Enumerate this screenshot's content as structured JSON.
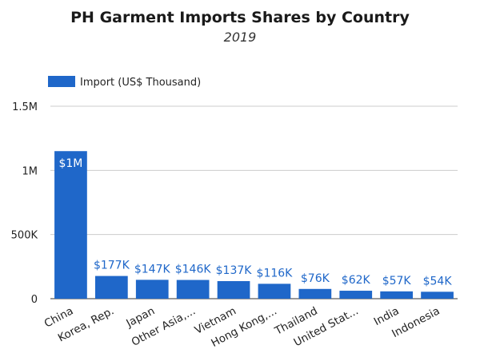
{
  "chart_data": {
    "type": "bar",
    "title": "PH Garment Imports Shares by Country",
    "subtitle": "2019",
    "legend": {
      "position": "top-left",
      "entries": [
        {
          "name": "Import (US$ Thousand)",
          "color": "#1f67c9"
        }
      ]
    },
    "bar_color": "#1f67c9",
    "ylim": [
      0,
      1500000
    ],
    "yticks": [
      {
        "value": 0,
        "label": "0"
      },
      {
        "value": 500000,
        "label": "500K"
      },
      {
        "value": 1000000,
        "label": "1M"
      },
      {
        "value": 1500000,
        "label": "1.5M"
      }
    ],
    "grid": true,
    "categories": [
      "China",
      "Korea, Rep.",
      "Japan",
      "Other Asia,...",
      "Vietnam",
      "Hong Kong,...",
      "Thailand",
      "United Stat...",
      "India",
      "Indonesia"
    ],
    "series": [
      {
        "name": "Import (US$ Thousand)",
        "values": [
          1150000,
          177000,
          147000,
          146000,
          137000,
          116000,
          76000,
          62000,
          57000,
          54000
        ],
        "labels": [
          "$1M",
          "$177K",
          "$147K",
          "$146K",
          "$137K",
          "$116K",
          "$76K",
          "$62K",
          "$57K",
          "$54K"
        ]
      }
    ]
  }
}
